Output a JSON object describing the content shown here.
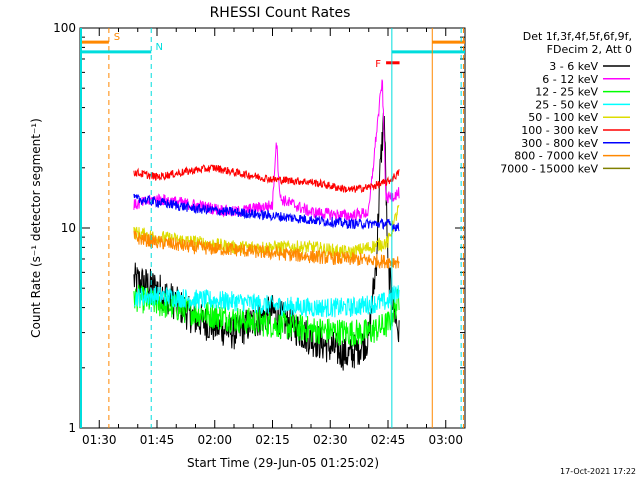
{
  "chart_data": {
    "type": "line",
    "title": "RHESSI Count Rates",
    "ylabel": "Count Rate (s⁻¹ detector segment⁻¹)",
    "xlabel": "Start Time (29-Jun-05 01:25:02)",
    "yscale": "log",
    "ylim": [
      1,
      100
    ],
    "xlim_minutes_after_0125": [
      0,
      100
    ],
    "x_ticks": [
      "01:30",
      "01:45",
      "02:00",
      "02:15",
      "02:30",
      "02:45",
      "03:00"
    ],
    "x_tick_minutes": [
      5,
      20,
      35,
      50,
      65,
      80,
      95
    ],
    "y_ticks": [
      "1",
      "10",
      "100"
    ],
    "y_tick_values": [
      1,
      10,
      100
    ],
    "legend_header": [
      "Det 1f,3f,4f,5f,6f,9f,",
      "FDecim 2, Att 0"
    ],
    "legend_position": "right, outside plot",
    "series": [
      {
        "name": "3 - 6 keV",
        "color": "#000000",
        "points": [
          [
            14,
            5.5
          ],
          [
            20,
            5.0
          ],
          [
            30,
            3.5
          ],
          [
            40,
            3.0
          ],
          [
            50,
            3.8
          ],
          [
            60,
            2.8
          ],
          [
            70,
            2.3
          ],
          [
            75,
            2.8
          ],
          [
            77,
            7
          ],
          [
            78,
            20
          ],
          [
            79,
            38
          ],
          [
            80,
            6
          ],
          [
            83,
            2.8
          ]
        ]
      },
      {
        "name": "6 - 12 keV",
        "color": "#ff00ff",
        "points": [
          [
            14,
            13
          ],
          [
            20,
            14
          ],
          [
            30,
            13
          ],
          [
            40,
            12
          ],
          [
            50,
            13
          ],
          [
            51,
            28
          ],
          [
            52,
            14
          ],
          [
            60,
            12
          ],
          [
            70,
            11.5
          ],
          [
            75,
            12
          ],
          [
            77,
            30
          ],
          [
            78.5,
            55
          ],
          [
            79.5,
            14
          ],
          [
            83,
            15
          ]
        ]
      },
      {
        "name": "12 - 25 keV",
        "color": "#00ff00",
        "points": [
          [
            14,
            4.5
          ],
          [
            20,
            4.2
          ],
          [
            30,
            3.8
          ],
          [
            40,
            3.5
          ],
          [
            50,
            3.3
          ],
          [
            60,
            3.1
          ],
          [
            70,
            3.0
          ],
          [
            75,
            3.0
          ],
          [
            80,
            3.3
          ],
          [
            83,
            4.5
          ]
        ]
      },
      {
        "name": "25 - 50 keV",
        "color": "#00ffff",
        "points": [
          [
            14,
            4.5
          ],
          [
            20,
            4.6
          ],
          [
            30,
            4.4
          ],
          [
            40,
            4.3
          ],
          [
            50,
            4.1
          ],
          [
            60,
            4.0
          ],
          [
            70,
            4.0
          ],
          [
            80,
            4.3
          ],
          [
            83,
            5.0
          ]
        ]
      },
      {
        "name": "50 - 100 keV",
        "color": "#dddd00",
        "points": [
          [
            14,
            9.5
          ],
          [
            20,
            9.0
          ],
          [
            30,
            8.5
          ],
          [
            40,
            8.0
          ],
          [
            50,
            8.0
          ],
          [
            60,
            8.0
          ],
          [
            70,
            7.5
          ],
          [
            80,
            8.5
          ],
          [
            83,
            13
          ]
        ]
      },
      {
        "name": "100 - 300 keV",
        "color": "#ff0000",
        "points": [
          [
            14,
            19
          ],
          [
            20,
            18
          ],
          [
            30,
            19.5
          ],
          [
            35,
            20
          ],
          [
            40,
            19
          ],
          [
            50,
            17.5
          ],
          [
            60,
            17
          ],
          [
            70,
            15.5
          ],
          [
            75,
            16
          ],
          [
            80,
            17
          ],
          [
            83,
            19
          ]
        ]
      },
      {
        "name": "300 - 800 keV",
        "color": "#0000ff",
        "points": [
          [
            14,
            14
          ],
          [
            20,
            13.5
          ],
          [
            30,
            12.5
          ],
          [
            40,
            12
          ],
          [
            50,
            11.5
          ],
          [
            60,
            11
          ],
          [
            70,
            10.5
          ],
          [
            80,
            10.5
          ],
          [
            83,
            10
          ]
        ]
      },
      {
        "name": "800 - 7000 keV",
        "color": "#ff8800",
        "points": [
          [
            14,
            9.0
          ],
          [
            20,
            8.5
          ],
          [
            30,
            8.0
          ],
          [
            40,
            7.8
          ],
          [
            50,
            7.5
          ],
          [
            60,
            7.2
          ],
          [
            70,
            7.0
          ],
          [
            80,
            6.8
          ],
          [
            83,
            6.8
          ]
        ]
      },
      {
        "name": "7000 - 15000 keV",
        "color": "#808000",
        "points": []
      }
    ],
    "annotations": [
      {
        "label": "S",
        "color": "#ff8800",
        "style": "dashed-vertical",
        "x_minutes": 7.5,
        "bar_from": 0,
        "bar_to": 7.5,
        "bar_level": 85
      },
      {
        "label": "N",
        "color": "#00dddd",
        "style": "dashed-vertical",
        "x_minutes": 18.5,
        "bar_from": 0,
        "bar_to": 18.5,
        "bar_level": 76
      },
      {
        "label": "F",
        "color": "#ff0000",
        "style": "bar",
        "bar_from": 79.5,
        "bar_to": 83,
        "bar_level": 67
      }
    ],
    "right_markers": [
      {
        "color": "#00dddd",
        "style": "solid-vertical",
        "x_minutes": 81,
        "bar_from": 81,
        "bar_to": 100,
        "bar_level": 76
      },
      {
        "color": "#ff8800",
        "style": "solid-vertical",
        "x_minutes": 91.5,
        "bar_from": 91.5,
        "bar_to": 100,
        "bar_level": 85
      },
      {
        "color": "#00dddd",
        "style": "dashed-vertical",
        "x_minutes": 99,
        "bar_from": 0,
        "bar_to": 0,
        "bar_level": 0
      },
      {
        "color": "#ff8800",
        "style": "dashed-vertical",
        "x_minutes": 99.6,
        "bar_from": 0,
        "bar_to": 0,
        "bar_level": 0
      }
    ]
  },
  "footer": {
    "timestamp": "17-Oct-2021 17:22"
  }
}
